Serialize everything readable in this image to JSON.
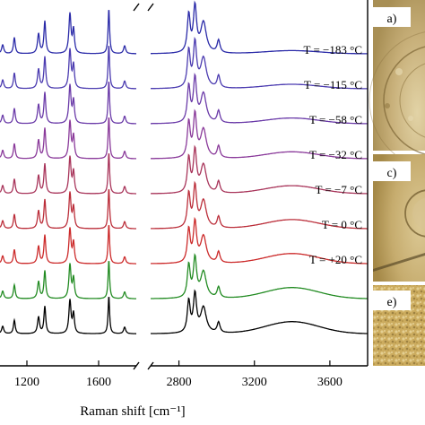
{
  "chart_data": {
    "type": "line",
    "xlabel": "Raman shift [cm⁻¹]",
    "x_axis_segments": [
      {
        "range": [
          1050,
          1810
        ],
        "ticks": [
          {
            "value": 1200,
            "label": "1200"
          },
          {
            "value": 1600,
            "label": "1600"
          }
        ]
      },
      {
        "range": [
          2650,
          3800
        ],
        "ticks": [
          {
            "value": 2800,
            "label": "2800"
          },
          {
            "value": 3200,
            "label": "3200"
          },
          {
            "value": 3600,
            "label": "3600"
          }
        ]
      }
    ],
    "axis_break": true,
    "y_axis": "stacked offset spectra, no tick labels",
    "series": [
      {
        "name": "T = −183 °C",
        "color": "#2a2aa8",
        "labeled": true
      },
      {
        "name": "T = −115 °C",
        "color": "#4b3bb0",
        "labeled": true
      },
      {
        "name": "T = −58 °C",
        "color": "#6a3aa8",
        "labeled": true
      },
      {
        "name": "T = −32 °C",
        "color": "#8a3a9a",
        "labeled": true
      },
      {
        "name": "T = −7 °C",
        "color": "#a8345a",
        "labeled": true
      },
      {
        "name": "T = 0 °C",
        "color": "#bb2e3a",
        "labeled": true
      },
      {
        "name": "T = +20 °C",
        "color": "#cc2a2a",
        "labeled": true
      },
      {
        "name": "",
        "color": "#228b22",
        "labeled": false
      },
      {
        "name": "",
        "color": "#000000",
        "labeled": false
      }
    ],
    "peaks": {
      "fingerprint": [
        {
          "x": 1065,
          "h": 0.25,
          "w": 7
        },
        {
          "x": 1130,
          "h": 0.45,
          "w": 6
        },
        {
          "x": 1265,
          "h": 0.55,
          "w": 7
        },
        {
          "x": 1300,
          "h": 0.9,
          "w": 6
        },
        {
          "x": 1440,
          "h": 1.1,
          "w": 7
        },
        {
          "x": 1460,
          "h": 0.65,
          "w": 6
        },
        {
          "x": 1657,
          "h": 1.25,
          "w": 5
        },
        {
          "x": 1745,
          "h": 0.22,
          "w": 7
        }
      ],
      "ch_stretch": [
        {
          "x": 2852,
          "h": 1.05,
          "w": 9
        },
        {
          "x": 2885,
          "h": 1.25,
          "w": 10
        },
        {
          "x": 2930,
          "h": 0.85,
          "w": 18
        },
        {
          "x": 3010,
          "h": 0.35,
          "w": 9
        }
      ],
      "water_band": {
        "x": 3400,
        "h": 0.35,
        "w": 200
      }
    }
  },
  "micrographs": [
    {
      "label": "a)",
      "tone": "#c9b277"
    },
    {
      "label": "c)",
      "tone": "#c7ae70"
    },
    {
      "label": "e)",
      "tone": "#c6a85f"
    }
  ]
}
